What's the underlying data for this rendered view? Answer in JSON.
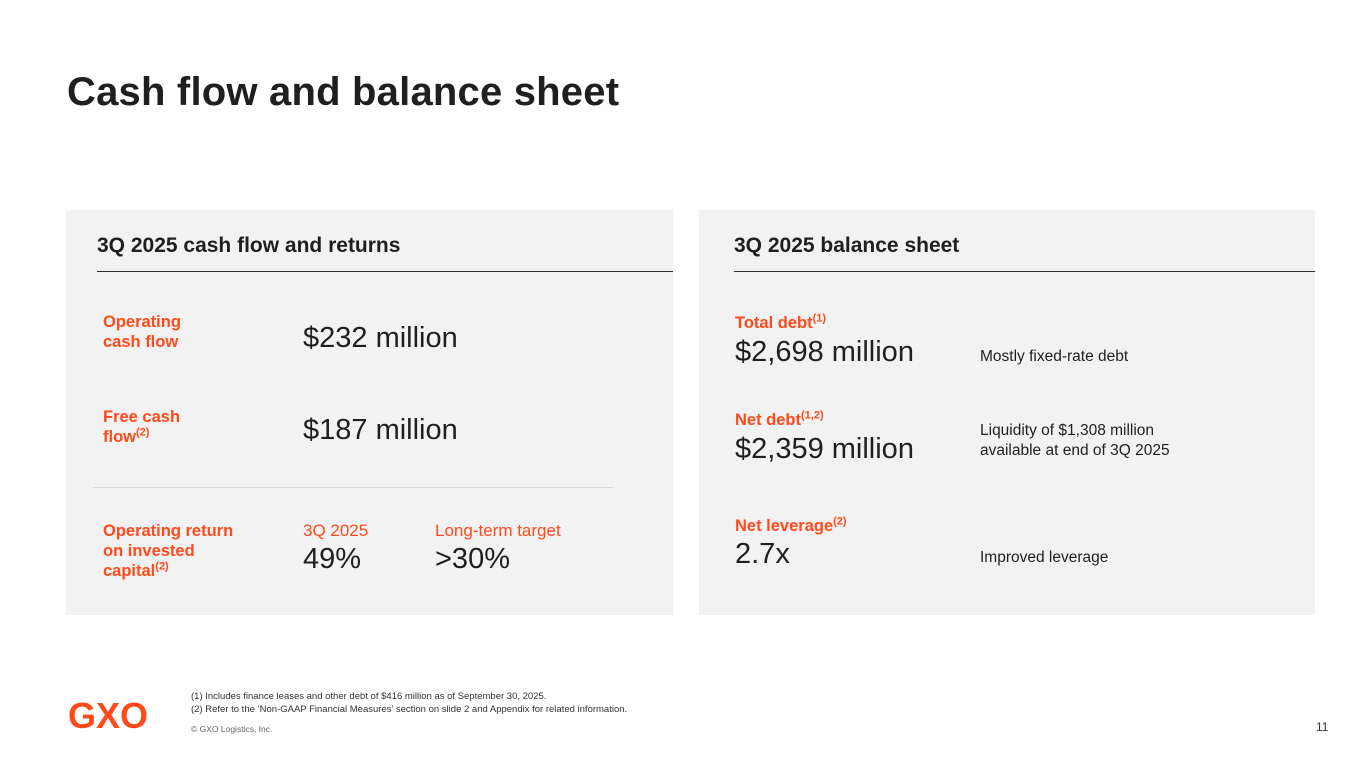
{
  "title": "Cash flow and balance sheet",
  "left_panel": {
    "heading": "3Q 2025 cash flow and returns",
    "operating_cash_flow": {
      "label_line1": "Operating",
      "label_line2": "cash flow",
      "value": "$232 million"
    },
    "free_cash_flow": {
      "label_line1": "Free cash",
      "label_line2": "flow",
      "label_sup": "(2)",
      "value": "$187 million"
    },
    "roic": {
      "label_line1": "Operating return",
      "label_line2": "on invested",
      "label_line3": "capital",
      "label_sup": "(2)",
      "col1_header": "3Q 2025",
      "col1_value": "49%",
      "col2_header": "Long-term target",
      "col2_value": ">30%"
    }
  },
  "right_panel": {
    "heading": "3Q 2025 balance sheet",
    "total_debt": {
      "label": "Total debt",
      "label_sup": "(1)",
      "value": "$2,698 million",
      "note": "Mostly fixed-rate debt"
    },
    "net_debt": {
      "label": "Net debt",
      "label_sup": "(1,2)",
      "value": "$2,359 million",
      "note_line1": "Liquidity of $1,308 million",
      "note_line2": "available at end of 3Q 2025"
    },
    "net_leverage": {
      "label": "Net leverage",
      "label_sup": "(2)",
      "value": "2.7x",
      "note": "Improved leverage"
    }
  },
  "footer": {
    "logo_letters": [
      "G",
      "X",
      "O"
    ],
    "footnote1": "(1) Includes finance leases and other debt of $416 million as of September 30, 2025.",
    "footnote2": "(2) Refer to the ‘Non-GAAP Financial Measures’ section on slide 2 and Appendix for related information.",
    "copyright": "© GXO Logistics, Inc.",
    "page_number": "11"
  },
  "colors": {
    "accent": "#ff4a1c",
    "panel_bg": "#f2f2f2",
    "text": "#1f1f1f"
  }
}
